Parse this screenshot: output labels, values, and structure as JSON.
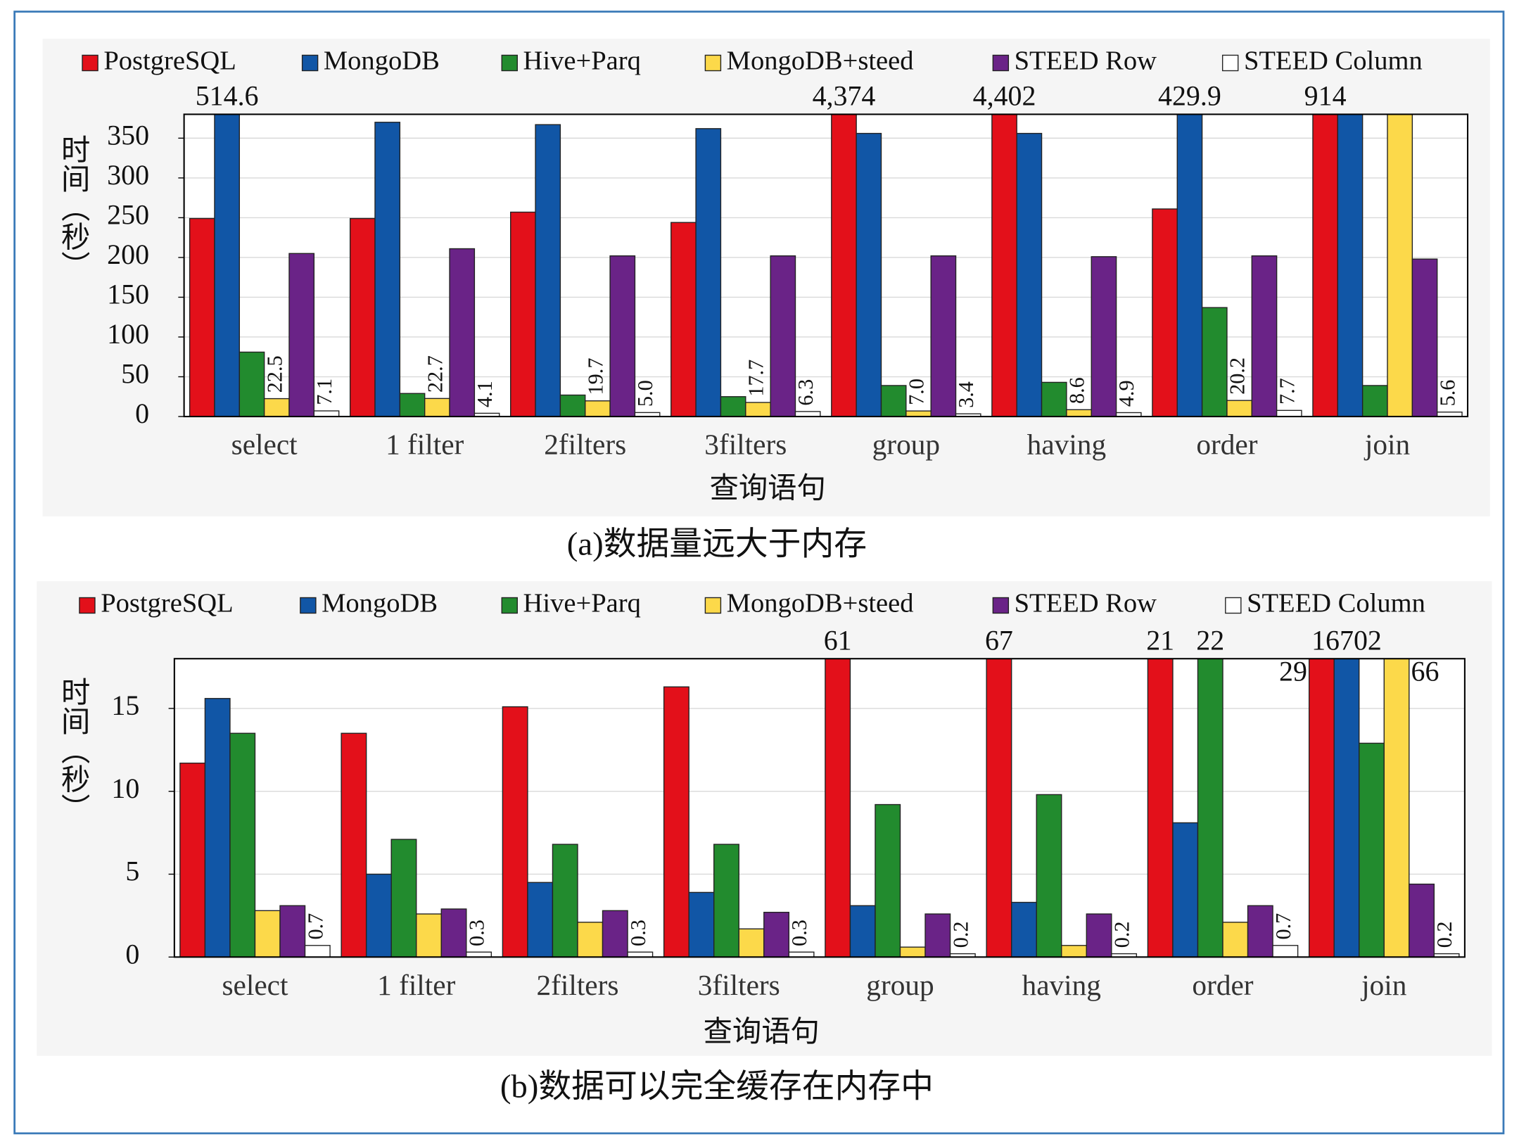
{
  "chart_data": [
    {
      "type": "bar",
      "caption": "(a)数据量远大于内存",
      "xlabel": "查询语句",
      "ylabel": "时间（秒）",
      "categories": [
        "select",
        "1 filter",
        "2filters",
        "3filters",
        "group",
        "having",
        "order",
        "join"
      ],
      "ylim": [
        0,
        380
      ],
      "yticks": [
        0,
        50,
        100,
        150,
        200,
        250,
        300,
        350
      ],
      "grid": true,
      "legend": "top",
      "series": [
        {
          "name": "PostgreSQL",
          "color": "#e3101a",
          "values": [
            249,
            249,
            257,
            244,
            4374,
            4402,
            261,
            914
          ],
          "value_labels": [
            null,
            null,
            null,
            null,
            "4,374",
            "4,402",
            null,
            "914"
          ]
        },
        {
          "name": "MongoDB",
          "color": "#1156a6",
          "values": [
            514.6,
            370,
            367,
            362,
            356,
            356,
            429.9,
            380
          ],
          "value_labels": [
            "514.6",
            null,
            null,
            null,
            null,
            null,
            "429.9",
            null
          ]
        },
        {
          "name": "Hive+Parq",
          "color": "#228b2e",
          "values": [
            81,
            29,
            27,
            25,
            39,
            43,
            137,
            39
          ]
        },
        {
          "name": "MongoDB+steed",
          "color": "#fcd94a",
          "values": [
            22.5,
            22.7,
            19.7,
            17.7,
            7.0,
            8.6,
            20.2,
            380
          ],
          "value_labels": [
            "22.5",
            "22.7",
            "19.7",
            "17.7",
            "7.0",
            "8.6",
            "20.2",
            null
          ]
        },
        {
          "name": "STEED Row",
          "color": "#6a2387",
          "values": [
            205,
            211,
            202,
            202,
            202,
            201,
            202,
            198
          ]
        },
        {
          "name": "STEED Column",
          "color": "#ffffff",
          "values": [
            7.1,
            4.1,
            5.0,
            6.3,
            3.4,
            4.9,
            7.7,
            5.6
          ],
          "value_labels": [
            "7.1",
            "4.1",
            "5.0",
            "6.3",
            "3.4",
            "4.9",
            "7.7",
            "5.6"
          ]
        }
      ]
    },
    {
      "type": "bar",
      "caption": "(b)数据可以完全缓存在内存中",
      "xlabel": "查询语句",
      "ylabel": "时间（秒）",
      "categories": [
        "select",
        "1 filter",
        "2filters",
        "3filters",
        "group",
        "having",
        "order",
        "join"
      ],
      "ylim": [
        0,
        18
      ],
      "yticks": [
        0,
        5,
        10,
        15
      ],
      "grid": true,
      "legend": "top",
      "series": [
        {
          "name": "PostgreSQL",
          "color": "#e3101a",
          "values": [
            11.7,
            13.5,
            15.1,
            16.3,
            61,
            67,
            21,
            29
          ],
          "value_labels": [
            null,
            null,
            null,
            null,
            "61",
            "67",
            "21",
            "29"
          ]
        },
        {
          "name": "MongoDB",
          "color": "#1156a6",
          "values": [
            15.6,
            5.0,
            4.5,
            3.9,
            3.1,
            3.3,
            8.1,
            16702
          ],
          "value_labels": [
            null,
            null,
            null,
            null,
            null,
            null,
            null,
            "16702"
          ]
        },
        {
          "name": "Hive+Parq",
          "color": "#228b2e",
          "values": [
            13.5,
            7.1,
            6.8,
            6.8,
            9.2,
            9.8,
            22,
            12.9
          ],
          "value_labels": [
            null,
            null,
            null,
            null,
            null,
            null,
            "22",
            null
          ]
        },
        {
          "name": "MongoDB+steed",
          "color": "#fcd94a",
          "values": [
            2.8,
            2.6,
            2.1,
            1.7,
            0.6,
            0.7,
            2.1,
            66
          ],
          "value_labels": [
            null,
            null,
            null,
            null,
            null,
            null,
            null,
            "66"
          ]
        },
        {
          "name": "STEED Row",
          "color": "#6a2387",
          "values": [
            3.1,
            2.9,
            2.8,
            2.7,
            2.6,
            2.6,
            3.1,
            4.4
          ]
        },
        {
          "name": "STEED Column",
          "color": "#ffffff",
          "values": [
            0.7,
            0.3,
            0.3,
            0.3,
            0.2,
            0.2,
            0.7,
            0.2
          ],
          "value_labels": [
            "0.7",
            "0.3",
            "0.3",
            "0.3",
            "0.2",
            "0.2",
            "0.7",
            "0.2"
          ]
        }
      ]
    }
  ]
}
